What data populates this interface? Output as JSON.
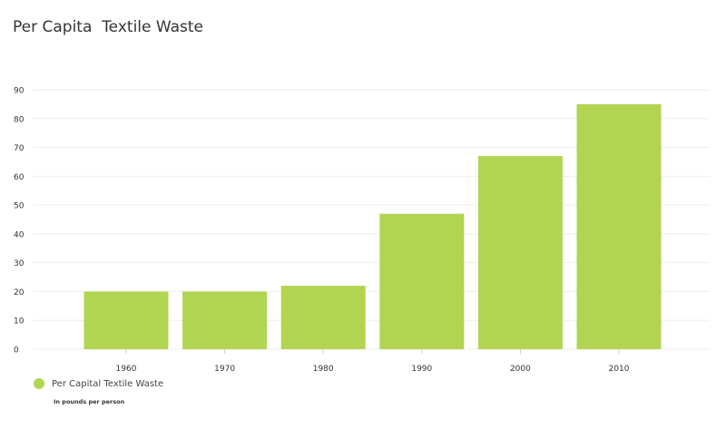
{
  "colors": {
    "bar": "#b1d551",
    "grid": "#eeeeee",
    "axis_text": "#333333"
  },
  "chart_data": {
    "type": "bar",
    "title": "Per Capita  Textile Waste",
    "categories": [
      "1960",
      "1970",
      "1980",
      "1990",
      "2000",
      "2010"
    ],
    "series": [
      {
        "name": "Per Capital Textile Waste",
        "values": [
          20,
          20,
          22,
          47,
          67,
          85
        ]
      }
    ],
    "ylim": [
      0,
      90
    ],
    "yticks": [
      0,
      10,
      20,
      30,
      40,
      50,
      60,
      70,
      80,
      90
    ],
    "grid": true,
    "legend": "bottom-left",
    "note": "In pounds per person"
  }
}
